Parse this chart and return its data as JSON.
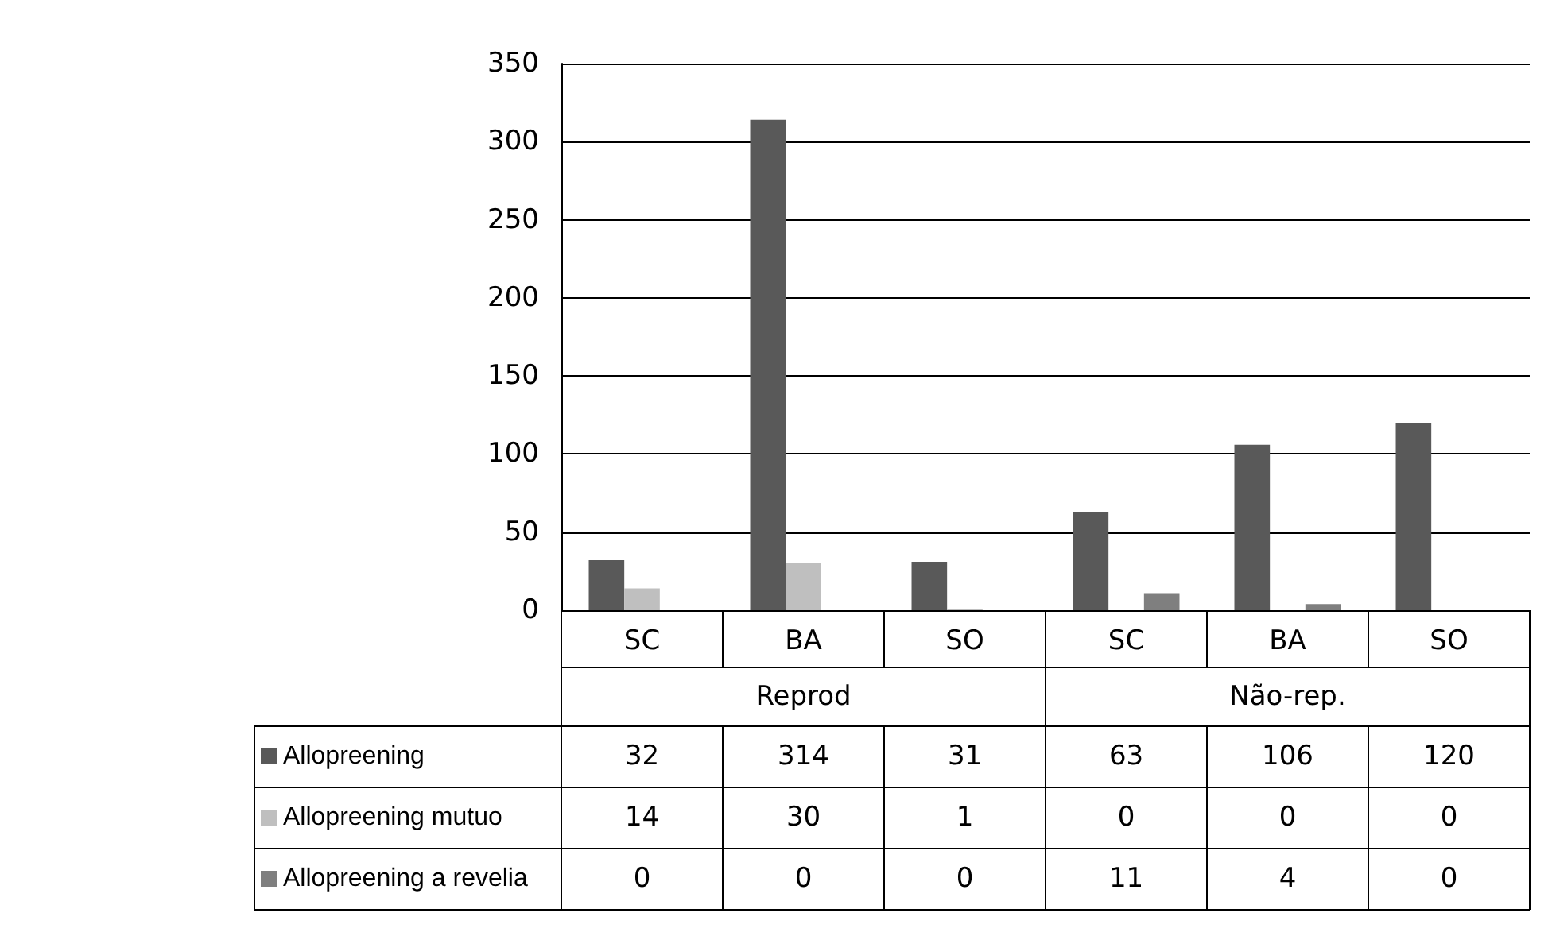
{
  "chart_data": {
    "type": "bar",
    "categories": [
      "SC",
      "BA",
      "SO",
      "SC",
      "BA",
      "SO"
    ],
    "annotations": [
      "Reprod",
      "Não-rep."
    ],
    "series": [
      {
        "name": "Allopreening",
        "color": "#595959",
        "values": [
          32,
          314,
          31,
          63,
          106,
          120
        ]
      },
      {
        "name": "Allopreening mutuo",
        "color": "#bfbfbf",
        "values": [
          14,
          30,
          1,
          0,
          0,
          0
        ]
      },
      {
        "name": "Allopreening a revelia",
        "color": "#7f7f7f",
        "values": [
          0,
          0,
          0,
          11,
          4,
          0
        ]
      }
    ],
    "ylim": [
      0,
      350
    ],
    "yticks": [
      0,
      50,
      100,
      150,
      200,
      250,
      300,
      350
    ],
    "grid": "y",
    "legend": "bottom",
    "data_labels": true
  }
}
